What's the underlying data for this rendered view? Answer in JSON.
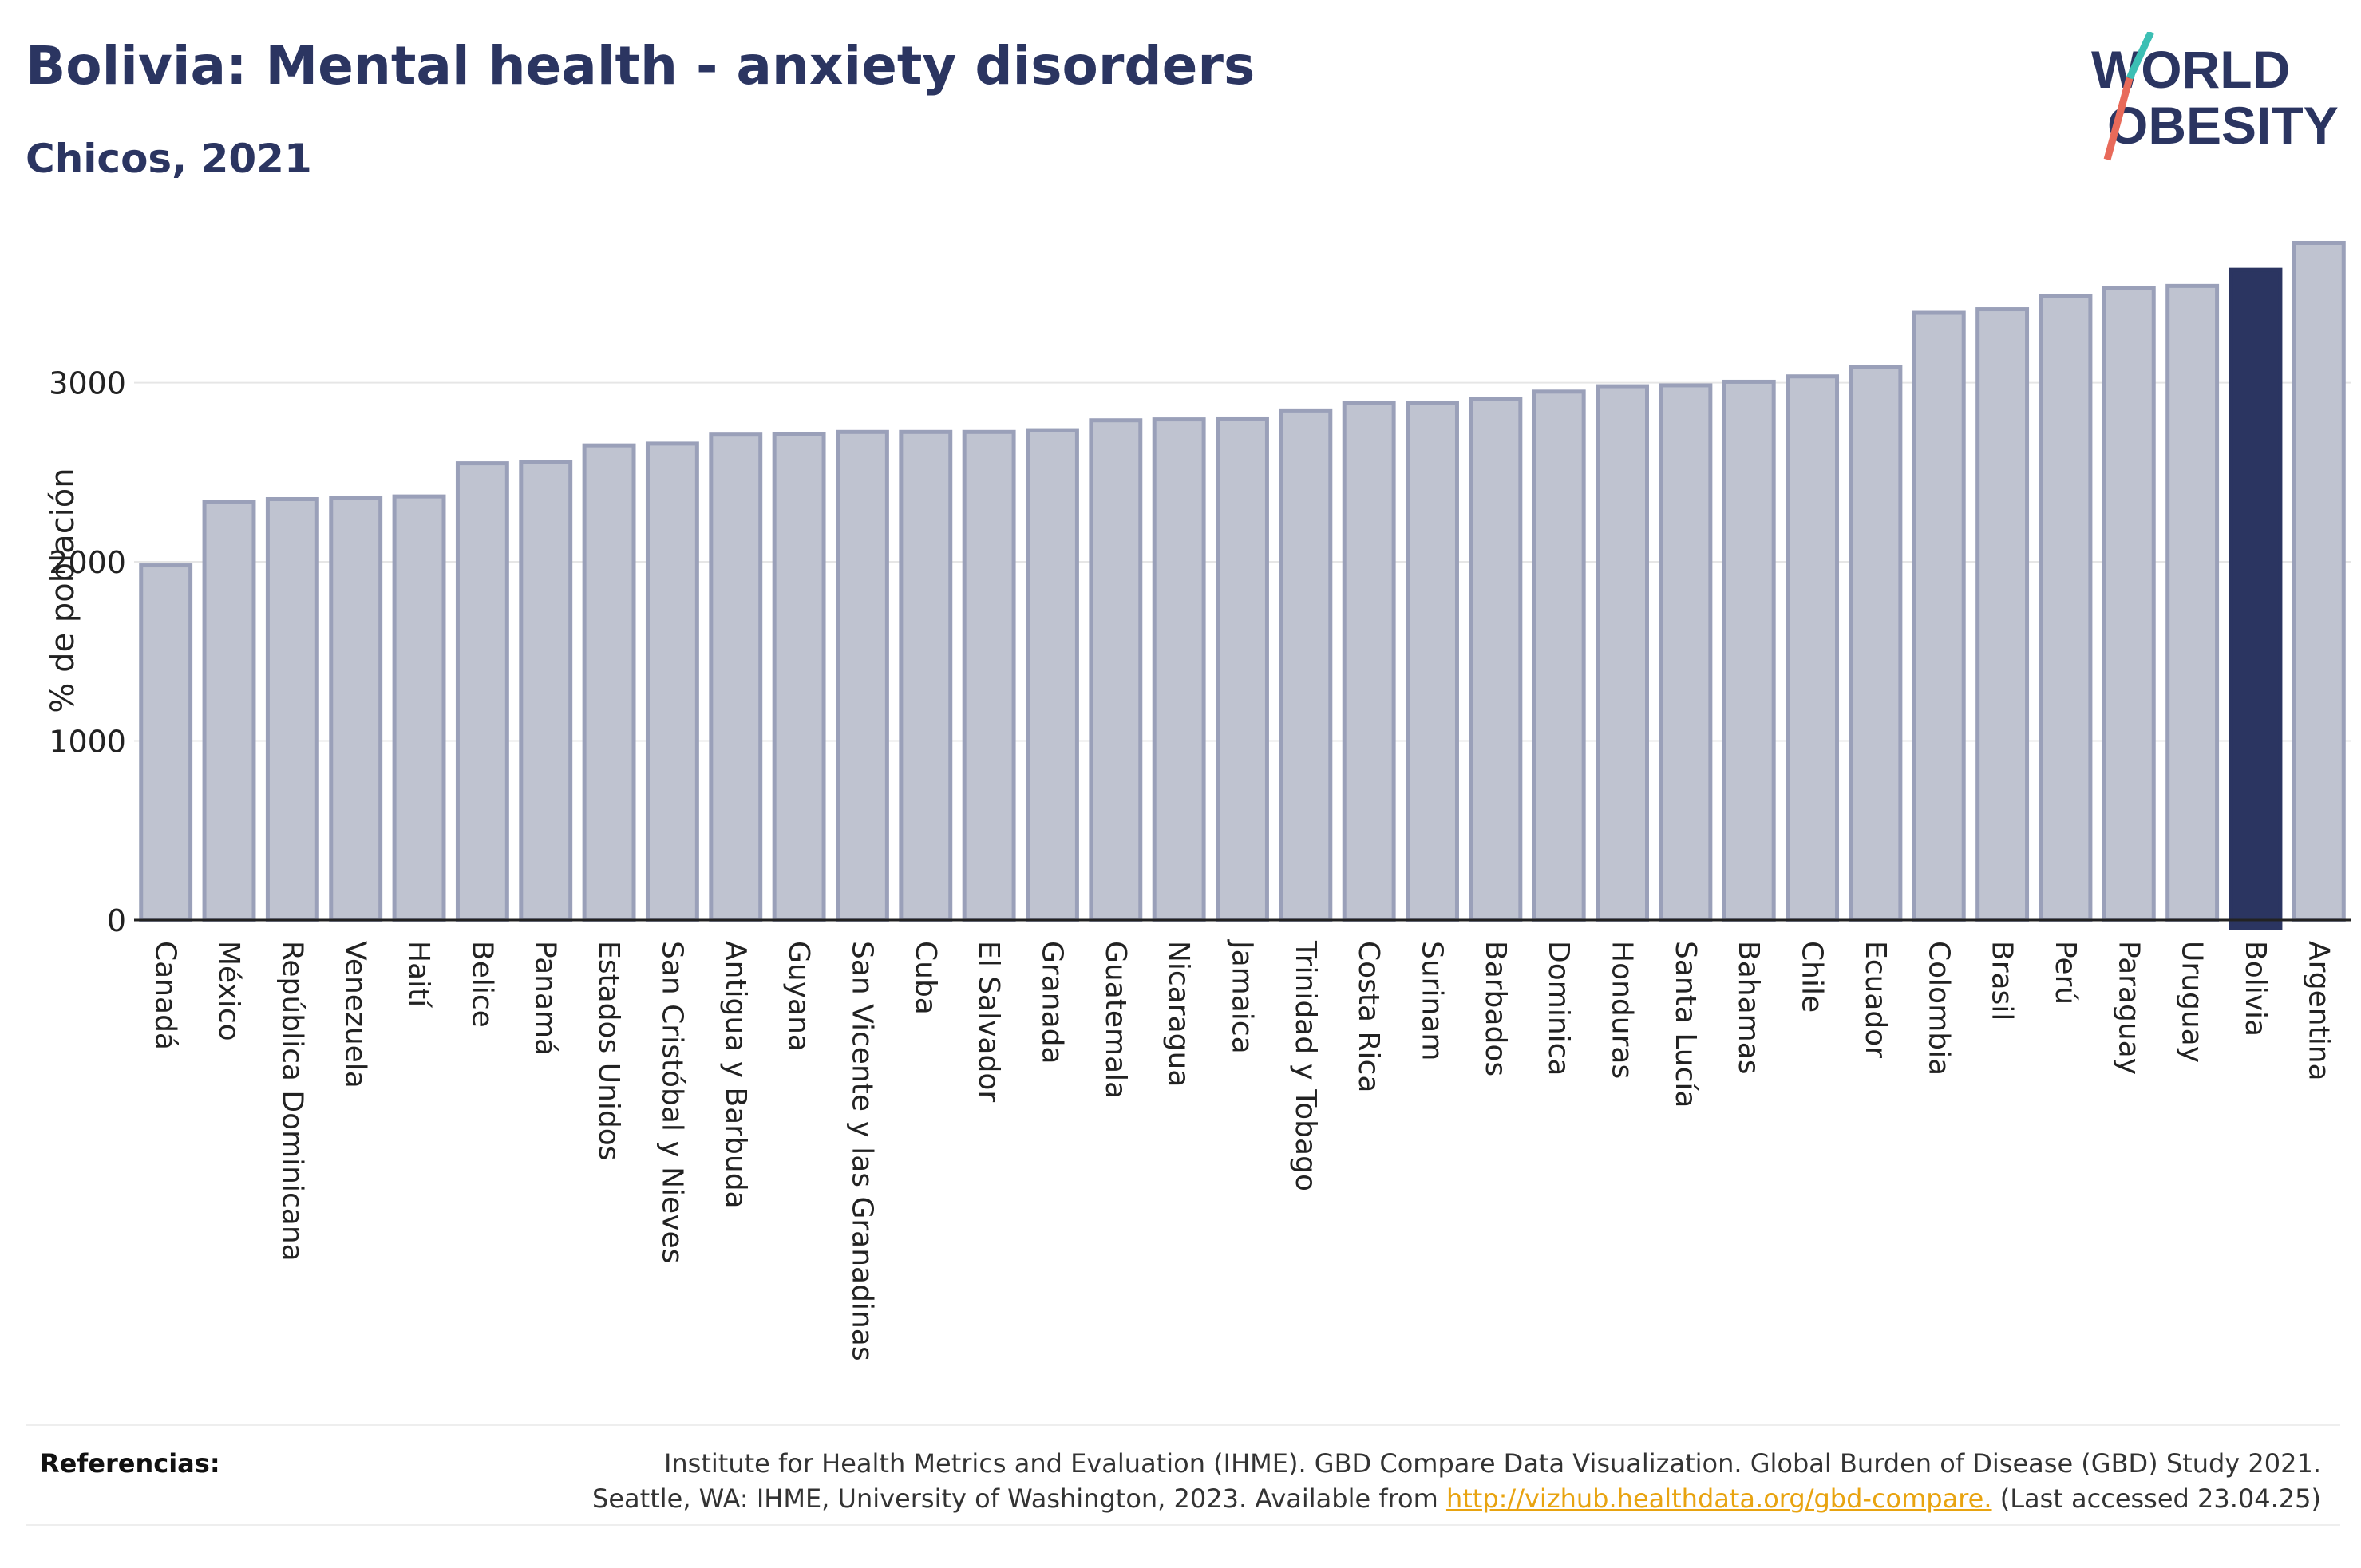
{
  "header": {
    "title": "Bolivia: Mental health - anxiety disorders",
    "subtitle": "Chicos, 2021"
  },
  "logo": {
    "line1": "WORLD",
    "line2": "OBESITY"
  },
  "colors": {
    "bar": "#bfc3d0",
    "bar_border": "#9aa0b9",
    "highlight": "#2b3561",
    "title": "#2b3561",
    "link": "#e8a310"
  },
  "chart_data": {
    "type": "bar",
    "title": "Bolivia: Mental health - anxiety disorders",
    "subtitle": "Chicos, 2021",
    "ylabel": "% de población",
    "xlabel": "",
    "ylim": [
      0,
      3800
    ],
    "yticks": [
      0,
      1000,
      2000,
      3000
    ],
    "grid": true,
    "highlight": "Bolivia",
    "categories": [
      "Canadá",
      "México",
      "República Dominicana",
      "Venezuela",
      "Haití",
      "Belice",
      "Panamá",
      "Estados Unidos",
      "San Cristóbal y Nieves",
      "Antigua y Barbuda",
      "Guyana",
      "San Vicente y las Granadinas",
      "Cuba",
      "El Salvador",
      "Granada",
      "Guatemala",
      "Nicaragua",
      "Jamaica",
      "Trinidad y Tobago",
      "Costa Rica",
      "Surinam",
      "Barbados",
      "Dominica",
      "Honduras",
      "Santa Lucía",
      "Bahamas",
      "Chile",
      "Ecuador",
      "Colombia",
      "Brasil",
      "Perú",
      "Paraguay",
      "Uruguay",
      "Bolivia",
      "Argentina"
    ],
    "values": [
      1980,
      2335,
      2350,
      2355,
      2365,
      2550,
      2555,
      2650,
      2660,
      2710,
      2715,
      2725,
      2725,
      2725,
      2735,
      2790,
      2795,
      2800,
      2845,
      2885,
      2885,
      2910,
      2950,
      2980,
      2985,
      3005,
      3035,
      3085,
      3390,
      3410,
      3485,
      3530,
      3540,
      3630,
      3780
    ]
  },
  "references": {
    "label": "Referencias:",
    "line1": "Institute for Health Metrics and Evaluation (IHME). GBD Compare Data Visualization. Global Burden of Disease (GBD) Study 2021.",
    "line2_prefix": "Seattle, WA: IHME, University of Washington, 2023. Available from ",
    "link": "http://vizhub.healthdata.org/gbd-compare.",
    "line2_suffix": " (Last accessed 23.04.25)"
  }
}
